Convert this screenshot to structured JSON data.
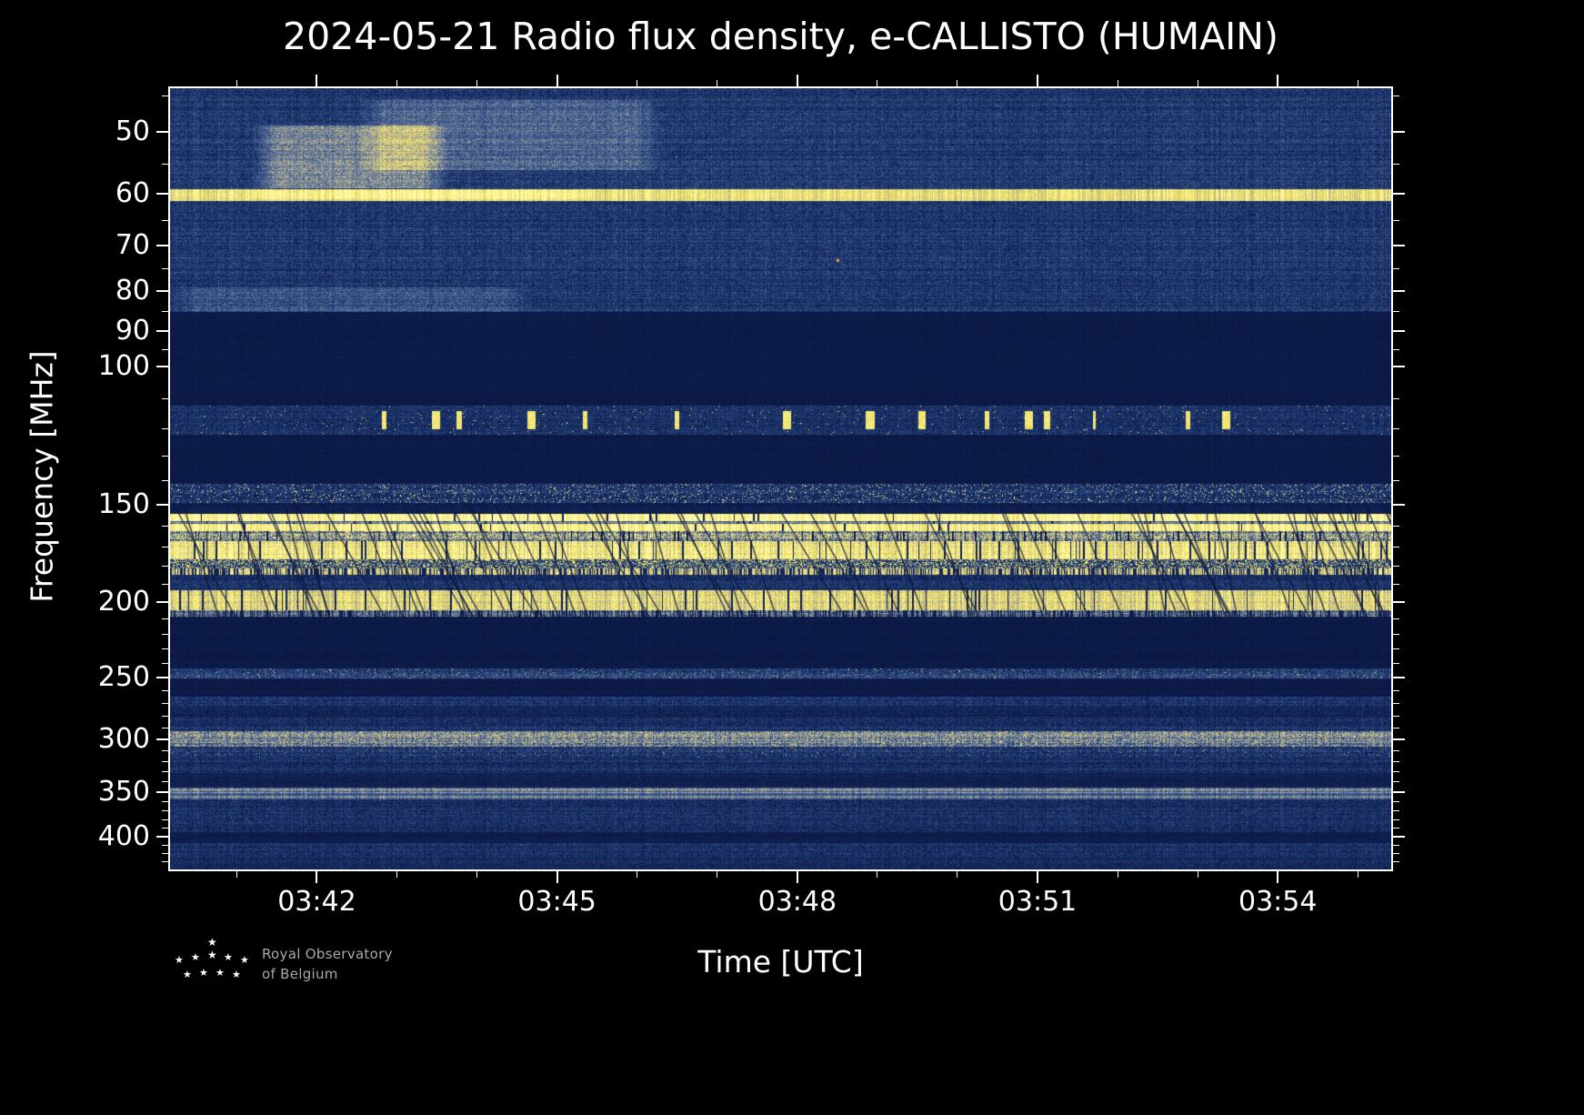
{
  "colors": {
    "background": "#000000",
    "frame": "#ffffff",
    "text": "#ffffff",
    "logo_text": "#a8a8a8"
  },
  "logo": {
    "line1": "Royal Observatory",
    "line2": "of Belgium",
    "stars": [
      [
        36,
        0,
        12
      ],
      [
        0,
        20,
        11
      ],
      [
        18,
        17,
        11
      ],
      [
        36,
        14,
        12
      ],
      [
        54,
        17,
        11
      ],
      [
        72,
        20,
        11
      ],
      [
        9,
        36,
        11
      ],
      [
        27,
        34,
        11
      ],
      [
        45,
        34,
        11
      ],
      [
        63,
        36,
        11
      ]
    ]
  },
  "chart_data": {
    "type": "heatmap",
    "subtype": "radio-spectrogram",
    "title": "2024-05-21 Radio flux density, e-CALLISTO (HUMAIN)",
    "xlabel": "Time [UTC]",
    "ylabel": "Frequency [MHz]",
    "x_range": [
      "03:40:10",
      "03:55:25"
    ],
    "x_ticks": [
      "03:42",
      "03:45",
      "03:48",
      "03:51",
      "03:54"
    ],
    "x_minor_every_sec": 60,
    "y_scale": "log",
    "y_inverted": true,
    "y_range_mhz": [
      44,
      440
    ],
    "y_ticks": [
      50,
      60,
      70,
      80,
      90,
      100,
      150,
      200,
      250,
      300,
      350,
      400
    ],
    "y_minor_ticks": [
      45,
      55,
      65,
      75,
      85,
      95,
      110,
      120,
      130,
      140,
      160,
      170,
      180,
      190,
      210,
      220,
      230,
      240,
      260,
      270,
      280,
      290,
      310,
      320,
      330,
      340,
      360,
      370,
      380,
      390,
      410,
      420,
      430
    ],
    "grid": false,
    "legend": "none",
    "colormap_stops": [
      [
        0.0,
        8,
        18,
        58
      ],
      [
        0.18,
        20,
        40,
        92
      ],
      [
        0.35,
        46,
        76,
        132
      ],
      [
        0.5,
        92,
        112,
        148
      ],
      [
        0.62,
        150,
        156,
        158
      ],
      [
        0.74,
        204,
        194,
        128
      ],
      [
        0.87,
        240,
        226,
        100
      ],
      [
        1.0,
        255,
        250,
        168
      ]
    ],
    "default_band": {
      "f": [
        0,
        1000
      ],
      "base": 0.07,
      "noise": 0.025
    },
    "bands": [
      {
        "f": [
          44,
          59.2
        ],
        "base": 0.26,
        "noise": 0.13,
        "desc": "broadband noise 44-59 MHz"
      },
      {
        "f": [
          59.2,
          61.3
        ],
        "base": 0.85,
        "noise": 0.08,
        "desc": "persistent RFI line ~60 MHz"
      },
      {
        "f": [
          61.3,
          85
        ],
        "base": 0.25,
        "noise": 0.13,
        "desc": "broadband noise 61-85 MHz"
      },
      {
        "f": [
          85,
          112
        ],
        "base": 0.07,
        "noise": 0.025,
        "desc": "blanked FM band"
      },
      {
        "f": [
          112,
          122
        ],
        "base": 0.22,
        "noise": 0.12,
        "speckle": 0.008,
        "speckle_val": 0.9,
        "blob": 0.008,
        "desc": "airband with intermittent bright transmissions"
      },
      {
        "f": [
          122,
          141
        ],
        "base": 0.07,
        "noise": 0.025,
        "desc": "quiet"
      },
      {
        "f": [
          141,
          149
        ],
        "base": 0.24,
        "noise": 0.16,
        "speckle": 0.05,
        "speckle_val": 0.95,
        "desc": "speckled RFI band"
      },
      {
        "f": [
          149,
          154
        ],
        "base": 0.1,
        "noise": 0.06,
        "desc": "quiet"
      },
      {
        "f": [
          154,
          157.6
        ],
        "base": 0.97,
        "noise": 0.04,
        "streaks": 0.02,
        "desc": "saturated RFI band"
      },
      {
        "f": [
          157.6,
          158.7
        ],
        "base": 0.5,
        "noise": 0.15,
        "streaks": 0.03,
        "desc": "seam between RFI bands"
      },
      {
        "f": [
          158.7,
          162.3
        ],
        "base": 0.95,
        "noise": 0.05,
        "streaks": 0.02,
        "desc": "saturated RFI band"
      },
      {
        "f": [
          162.3,
          167
        ],
        "base": 0.58,
        "noise": 0.3,
        "streaks": 0.06,
        "desc": "mixed RFI"
      },
      {
        "f": [
          167,
          176
        ],
        "base": 0.88,
        "noise": 0.12,
        "streaks": 0.06,
        "desc": "strong RFI band with dropouts"
      },
      {
        "f": [
          176,
          181
        ],
        "base": 0.3,
        "noise": 0.2,
        "speckle": 0.25,
        "speckle_val": 0.88,
        "desc": "dotted RFI"
      },
      {
        "f": [
          181,
          184.5
        ],
        "base": 0.78,
        "noise": 0.18,
        "dash": 0.6,
        "streaks": 0.03,
        "desc": "dashed RFI line"
      },
      {
        "f": [
          184.5,
          193
        ],
        "base": 0.2,
        "noise": 0.12,
        "desc": "noise"
      },
      {
        "f": [
          193,
          204.5
        ],
        "base": 0.82,
        "noise": 0.12,
        "streaks": 0.05,
        "desc": "strong RFI band around 200 MHz"
      },
      {
        "f": [
          204.5,
          208.5
        ],
        "base": 0.5,
        "noise": 0.2,
        "dash": 0.65,
        "desc": "dashed RFI line"
      },
      {
        "f": [
          208.5,
          243
        ],
        "base": 0.07,
        "noise": 0.025,
        "desc": "quiet"
      },
      {
        "f": [
          243,
          250
        ],
        "base": 0.28,
        "noise": 0.16,
        "speckle": 0.02,
        "speckle_val": 0.8,
        "desc": "thin noise band ~247 MHz"
      },
      {
        "f": [
          250,
          264
        ],
        "base": 0.07,
        "noise": 0.025,
        "desc": "quiet"
      },
      {
        "f": [
          264,
          272
        ],
        "base": 0.24,
        "noise": 0.13,
        "desc": "noise band"
      },
      {
        "f": [
          272,
          281
        ],
        "base": 0.15,
        "noise": 0.1,
        "desc": "weak noise"
      },
      {
        "f": [
          281,
          292
        ],
        "base": 0.22,
        "noise": 0.13,
        "desc": "noise band"
      },
      {
        "f": [
          292,
          306
        ],
        "base": 0.5,
        "noise": 0.18,
        "speckle": 0.1,
        "speckle_val": 0.78,
        "desc": "yellowish RFI band ~300 MHz"
      },
      {
        "f": [
          306,
          316
        ],
        "base": 0.24,
        "noise": 0.15,
        "speckle": 0.012,
        "speckle_val": 0.72,
        "desc": "noise with sparse bright spots"
      },
      {
        "f": [
          316,
          331
        ],
        "base": 0.2,
        "noise": 0.12,
        "desc": "noise band"
      },
      {
        "f": [
          331,
          345
        ],
        "base": 0.12,
        "noise": 0.07,
        "desc": "weak"
      },
      {
        "f": [
          345,
          357
        ],
        "base": 0.5,
        "noise": 0.11,
        "desc": "grey band ~350 MHz"
      },
      {
        "f": [
          357,
          394
        ],
        "base": 0.2,
        "noise": 0.12,
        "desc": "noise band"
      },
      {
        "f": [
          394,
          407
        ],
        "base": 0.09,
        "noise": 0.04,
        "desc": "quiet"
      },
      {
        "f": [
          407,
          421
        ],
        "base": 0.22,
        "noise": 0.12,
        "desc": "noise band"
      },
      {
        "f": [
          421,
          441
        ],
        "base": 0.18,
        "noise": 0.11,
        "desc": "noise to bottom edge"
      }
    ],
    "patches": [
      {
        "t": [
          "03:41:10",
          "03:43:40"
        ],
        "f": [
          49,
          59
        ],
        "boost": 0.3,
        "desc": "grey emission haze upper-left"
      },
      {
        "t": [
          "03:42:30",
          "03:46:20"
        ],
        "f": [
          45.5,
          56
        ],
        "boost": 0.18,
        "desc": "fainter haze extension"
      },
      {
        "t": [
          "03:40:10",
          "03:44:40"
        ],
        "f": [
          79,
          85
        ],
        "boost": 0.13,
        "desc": "light strip near 80 MHz"
      },
      {
        "t": [
          "03:41:00",
          "03:45:30"
        ],
        "f": [
          59.3,
          61
        ],
        "boost": 0.1,
        "desc": "60 MHz line brightening"
      }
    ],
    "dots": [
      {
        "t": "03:48:30",
        "f": 73,
        "color": "#e8b060",
        "desc": "isolated point emission"
      }
    ],
    "diagonal_streaks": {
      "f": [
        150,
        210
      ],
      "count": 70,
      "desc": "slanted dark dropout lines through pager band"
    }
  }
}
